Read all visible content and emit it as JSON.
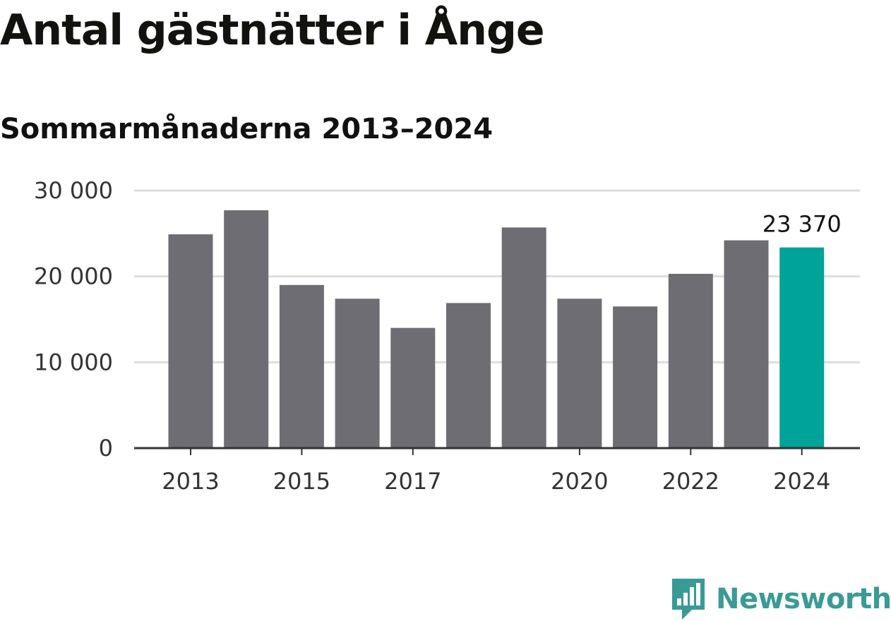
{
  "title": "Antal gästnätter i Ånge",
  "subtitle": "Sommarmånaderna 2013–2024",
  "brand": {
    "name": "Newsworthy",
    "color": "#3a9a96",
    "icon": "newsworthy-logo-icon"
  },
  "colors": {
    "bar": "#6e6d73",
    "highlight": "#00a398",
    "grid": "#dddddd",
    "axis": "#333333"
  },
  "chart_data": {
    "type": "bar",
    "categories": [
      "2013",
      "2014",
      "2015",
      "2016",
      "2017",
      "2018",
      "2019",
      "2020",
      "2021",
      "2022",
      "2023",
      "2024"
    ],
    "values": [
      24900,
      27700,
      19000,
      17400,
      14000,
      16900,
      25700,
      17400,
      16500,
      20300,
      24200,
      23370
    ],
    "highlight_index": 11,
    "ylim": [
      0,
      30000
    ],
    "yticks": [
      0,
      10000,
      20000,
      30000
    ],
    "ytick_labels": [
      "0",
      "10 000",
      "20 000",
      "30 000"
    ],
    "xtick_labels": [
      "2013",
      "2015",
      "2017",
      "2020",
      "2022",
      "2024"
    ],
    "xtick_indices": [
      0,
      2,
      4,
      7,
      9,
      11
    ],
    "annotation": {
      "index": 11,
      "text": "23 370"
    },
    "grid": true,
    "legend": "none"
  }
}
